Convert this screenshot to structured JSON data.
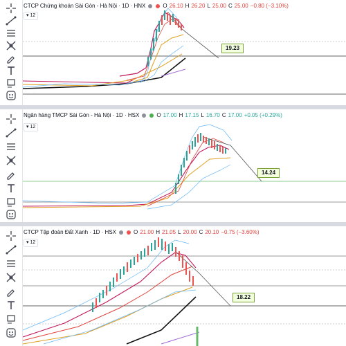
{
  "panels": [
    {
      "name": "CTCP Chứng khoán Sài Gòn - Hà Nội · 1D · HNX",
      "open_label": "O",
      "open": "26.10",
      "high_label": "H",
      "high": "26.20",
      "low_label": "L",
      "low": "25.00",
      "close_label": "C",
      "close": "25.00",
      "change": "−0.80 (−3.10%)",
      "layers": "12",
      "price_tag": "19.23",
      "direction": "down"
    },
    {
      "name": "Ngân hàng TMCP Sài Gòn - Hà Nội · 1D · HSX",
      "open_label": "O",
      "open": "17.00",
      "high_label": "H",
      "high": "17.15",
      "low_label": "L",
      "low": "16.70",
      "close_label": "C",
      "close": "17.00",
      "change": "+0.05 (+0.29%)",
      "layers": "12",
      "price_tag": "14.24",
      "direction": "up"
    },
    {
      "name": "CTCP Tập đoàn Đất Xanh · 1D · HSX",
      "open_label": "O",
      "open": "21.00",
      "high_label": "H",
      "high": "21.05",
      "low_label": "L",
      "low": "20.00",
      "close_label": "C",
      "close": "20.10",
      "change": "−0.75 (−3.60%)",
      "layers": "12",
      "price_tag": "18.22",
      "direction": "down"
    }
  ],
  "toolbar_icons": [
    "crosshair-icon",
    "trend-line-icon",
    "horizontal-lines-icon",
    "fork-icon",
    "brush-icon",
    "text-icon",
    "shapes-icon",
    "emoji-icon"
  ],
  "colors": {
    "up": "#26a69a",
    "down": "#ef5350",
    "ma_red": "#c2185b",
    "ma_yellow": "#e0a020",
    "ma_black": "#111111",
    "band": "#64b5f6",
    "tag_bg": "#f4ffe0",
    "tag_border": "#7aa43a"
  }
}
